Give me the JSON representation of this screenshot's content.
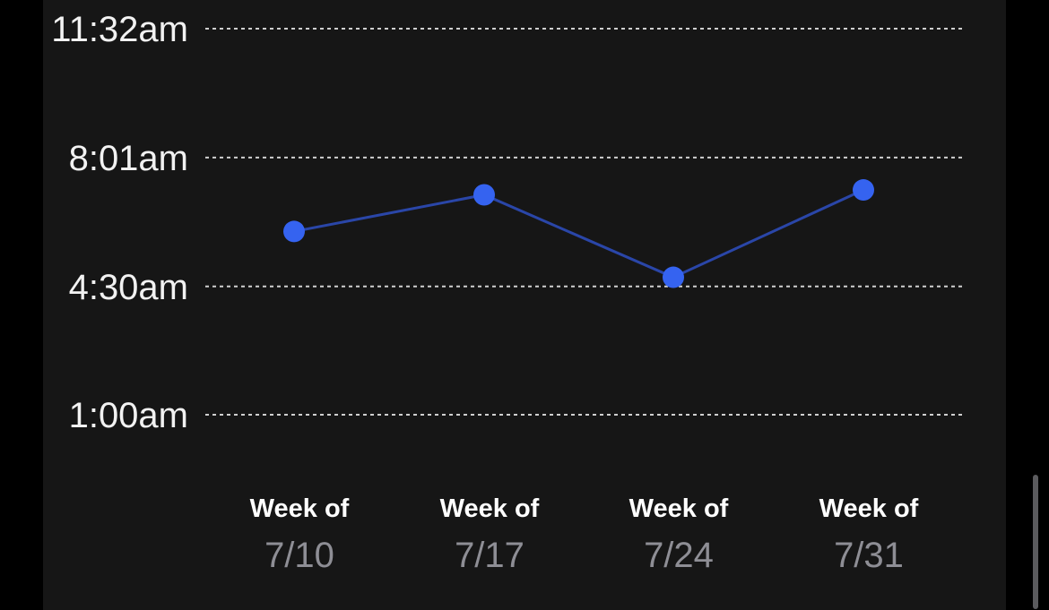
{
  "colors": {
    "background": "#000000",
    "panel": "#161616",
    "line": "#2a46a8",
    "point": "#3563f0",
    "gridline": "#d0d0d0",
    "axis_label": "#f2f2f2",
    "week_label": "#ffffff",
    "date_label": "#8e8e95"
  },
  "chart_data": {
    "type": "line",
    "categories": [
      {
        "prefix": "Week of",
        "date": "7/10"
      },
      {
        "prefix": "Week of",
        "date": "7/17"
      },
      {
        "prefix": "Week of",
        "date": "7/24"
      },
      {
        "prefix": "Week of",
        "date": "7/31"
      }
    ],
    "y_ticks": [
      {
        "label": "11:32am",
        "minutes": 692
      },
      {
        "label": "8:01am",
        "minutes": 481
      },
      {
        "label": "4:30am",
        "minutes": 270
      },
      {
        "label": "1:00am",
        "minutes": 60
      }
    ],
    "ylim_minutes": [
      60,
      692
    ],
    "series": [
      {
        "values_minutes": [
          360,
          420,
          285,
          428
        ]
      }
    ],
    "grid": "horizontal-dashed",
    "legend": "none"
  }
}
